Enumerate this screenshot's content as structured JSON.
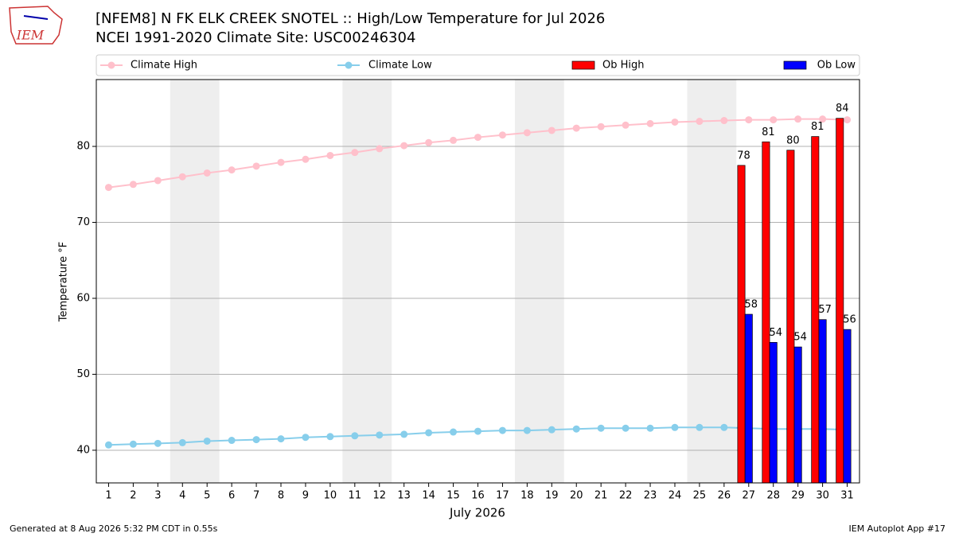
{
  "logo_text": "IEM",
  "footer_left": "Generated at 8 Aug 2026 5:32 PM CDT in 0.55s",
  "footer_right": "IEM Autoplot App #17",
  "chart_data": {
    "type": "bar",
    "title": "[NFEM8] N FK ELK CREEK SNOTEL :: High/Low Temperature for Jul 2026",
    "subtitle": "NCEI 1991-2020 Climate Site: USC00246304",
    "x_label": "July 2026",
    "y_label": "Temperature °F",
    "x": [
      1,
      2,
      3,
      4,
      5,
      6,
      7,
      8,
      9,
      10,
      11,
      12,
      13,
      14,
      15,
      16,
      17,
      18,
      19,
      20,
      21,
      22,
      23,
      24,
      25,
      26,
      27,
      28,
      29,
      30,
      31
    ],
    "xlim": [
      0.5,
      31.5
    ],
    "xticks": [
      1,
      2,
      3,
      4,
      5,
      6,
      7,
      8,
      9,
      10,
      11,
      12,
      13,
      14,
      15,
      16,
      17,
      18,
      19,
      20,
      21,
      22,
      23,
      24,
      25,
      26,
      27,
      28,
      29,
      30,
      31
    ],
    "ylim": [
      35.7,
      88.8
    ],
    "yticks": [
      40,
      50,
      60,
      70,
      80
    ],
    "grid": true,
    "shaded_ranges": [
      [
        3.5,
        5.5
      ],
      [
        10.5,
        12.5
      ],
      [
        17.5,
        19.5
      ],
      [
        24.5,
        26.5
      ]
    ],
    "shade_color": "#eeeeee",
    "series": [
      {
        "name": "Climate High",
        "type": "line",
        "color": "#ffc0cb",
        "values": [
          74.6,
          75.0,
          75.5,
          76.0,
          76.5,
          76.9,
          77.4,
          77.9,
          78.3,
          78.8,
          79.2,
          79.7,
          80.1,
          80.5,
          80.8,
          81.2,
          81.5,
          81.8,
          82.1,
          82.4,
          82.6,
          82.8,
          83.0,
          83.2,
          83.3,
          83.4,
          83.5,
          83.5,
          83.6,
          83.6,
          83.5
        ]
      },
      {
        "name": "Climate Low",
        "type": "line",
        "color": "#87ceeb",
        "values": [
          40.7,
          40.8,
          40.9,
          41.0,
          41.2,
          41.3,
          41.4,
          41.5,
          41.7,
          41.8,
          41.9,
          42.0,
          42.1,
          42.3,
          42.4,
          42.5,
          42.6,
          42.6,
          42.7,
          42.8,
          42.9,
          42.9,
          42.9,
          43.0,
          43.0,
          43.0,
          42.9,
          42.8,
          42.8,
          42.8,
          42.7
        ]
      },
      {
        "name": "Ob High",
        "type": "bar",
        "color": "#ff0000",
        "values": [
          null,
          null,
          null,
          null,
          null,
          null,
          null,
          null,
          null,
          null,
          null,
          null,
          null,
          null,
          null,
          null,
          null,
          null,
          null,
          null,
          null,
          null,
          null,
          null,
          null,
          null,
          77.5,
          80.6,
          79.5,
          81.3,
          83.7
        ],
        "value_labels": [
          null,
          null,
          null,
          null,
          null,
          null,
          null,
          null,
          null,
          null,
          null,
          null,
          null,
          null,
          null,
          null,
          null,
          null,
          null,
          null,
          null,
          null,
          null,
          null,
          null,
          null,
          "78",
          "81",
          "80",
          "81",
          "84"
        ]
      },
      {
        "name": "Ob Low",
        "type": "bar",
        "color": "#0000ff",
        "values": [
          null,
          null,
          null,
          null,
          null,
          null,
          null,
          null,
          null,
          null,
          null,
          null,
          null,
          null,
          null,
          null,
          null,
          null,
          null,
          null,
          null,
          null,
          null,
          null,
          null,
          null,
          57.9,
          54.2,
          53.6,
          57.2,
          55.9
        ],
        "value_labels": [
          null,
          null,
          null,
          null,
          null,
          null,
          null,
          null,
          null,
          null,
          null,
          null,
          null,
          null,
          null,
          null,
          null,
          null,
          null,
          null,
          null,
          null,
          null,
          null,
          null,
          null,
          "58",
          "54",
          "54",
          "57",
          "56"
        ]
      }
    ]
  }
}
